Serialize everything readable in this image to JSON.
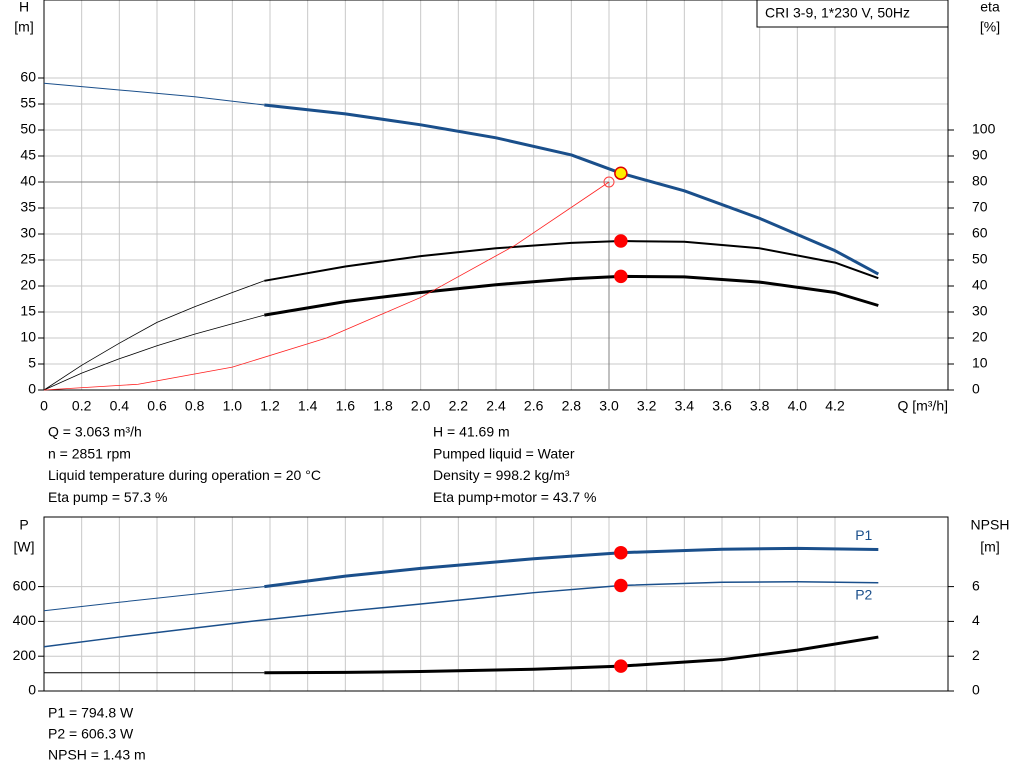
{
  "chart_data": [
    {
      "type": "line",
      "title": "CRI 3-9, 1*230 V, 50Hz",
      "ylabel": "H",
      "yunit": "[m]",
      "y2label": "eta",
      "y2unit": "[%]",
      "xlabel": "Q [m³/h]",
      "xlim": [
        0,
        4.8
      ],
      "ylim": [
        0,
        75
      ],
      "y2lim": [
        0,
        150
      ],
      "xticks": [
        0,
        0.2,
        0.4,
        0.6,
        0.8,
        {
          "value": 1,
          "label": "1.0"
        },
        1.2,
        1.4,
        1.6,
        1.8,
        {
          "value": 2,
          "label": "2.0"
        },
        2.2,
        2.4,
        2.6,
        2.8,
        {
          "value": 3,
          "label": "3.0"
        },
        3.2,
        3.4,
        3.6,
        3.8,
        {
          "value": 4,
          "label": "4.0"
        },
        4.2
      ],
      "xtick_labels": true,
      "yticks": [
        0,
        5,
        10,
        15,
        20,
        25,
        30,
        35,
        40,
        45,
        50,
        55,
        60
      ],
      "y2ticks": [
        0,
        10,
        20,
        30,
        40,
        50,
        60,
        70,
        80,
        90,
        100
      ],
      "grid": true,
      "reference": {
        "x": 3.0,
        "y": 40,
        "color": "#808080"
      },
      "series": [
        {
          "color": "#1a4f8b",
          "width": 1,
          "x": [
            0,
            0.4,
            0.8,
            1.17
          ],
          "values": [
            59,
            57.7,
            56.4,
            54.8
          ]
        },
        {
          "color": "#1a4f8b",
          "width": 3,
          "x": [
            1.17,
            1.6,
            2.0,
            2.4,
            2.8,
            3.063,
            3.4,
            3.8,
            4.2,
            4.43
          ],
          "values": [
            54.8,
            53.1,
            51,
            48.5,
            45.2,
            41.69,
            38.3,
            33,
            26.8,
            22.3
          ]
        },
        {
          "color": "#000000",
          "width": 0.8,
          "axis": "y2",
          "x": [
            0,
            0.2,
            0.4,
            0.6,
            0.8,
            1.0,
            1.17
          ],
          "values": [
            0,
            9.5,
            18,
            26,
            32,
            37.5,
            42
          ]
        },
        {
          "color": "#000000",
          "width": 2,
          "axis": "y2",
          "x": [
            1.17,
            1.6,
            2.0,
            2.4,
            2.8,
            3.063,
            3.4,
            3.8,
            4.2,
            4.43
          ],
          "values": [
            42,
            47.5,
            51.5,
            54.5,
            56.6,
            57.3,
            57,
            54.5,
            49,
            43
          ]
        },
        {
          "color": "#000000",
          "width": 0.8,
          "axis": "y2",
          "x": [
            0,
            0.2,
            0.4,
            0.6,
            0.8,
            1.0,
            1.17
          ],
          "values": [
            0,
            6.5,
            12,
            17,
            21.5,
            25.5,
            28.8
          ]
        },
        {
          "color": "#000000",
          "width": 3,
          "axis": "y2",
          "x": [
            1.17,
            1.6,
            2.0,
            2.4,
            2.8,
            3.063,
            3.4,
            3.8,
            4.2,
            4.43
          ],
          "values": [
            28.8,
            34,
            37.5,
            40.5,
            42.8,
            43.7,
            43.5,
            41.5,
            37.5,
            32.5
          ]
        },
        {
          "color": "#ff2020",
          "width": 0.8,
          "x": [
            0,
            0.5,
            1.0,
            1.5,
            2.0,
            2.5,
            3.0
          ],
          "values": [
            0,
            1.1,
            4.4,
            10,
            17.8,
            27.8,
            40
          ]
        }
      ],
      "markers": [
        {
          "x": 3.0,
          "y": 40,
          "fill": "none",
          "stroke": "#ff4040"
        },
        {
          "x": 3.063,
          "y": 41.69,
          "fill": "#ffee00",
          "stroke": "#dd0000"
        },
        {
          "x": 3.063,
          "y": 57.3,
          "axis": "y2",
          "fill": "#ff0000",
          "stroke": "#ff0000"
        },
        {
          "x": 3.063,
          "y": 43.7,
          "axis": "y2",
          "fill": "#ff0000",
          "stroke": "#ff0000"
        }
      ]
    },
    {
      "type": "line",
      "ylabel": "P",
      "yunit": "[W]",
      "y2label": "NPSH",
      "y2unit": "[m]",
      "xlim": [
        0,
        4.8
      ],
      "ylim": [
        0,
        1000
      ],
      "y2lim": [
        0,
        10
      ],
      "xticks": [
        0,
        0.2,
        0.4,
        0.6,
        0.8,
        1,
        1.2,
        1.4,
        1.6,
        1.8,
        2,
        2.2,
        2.4,
        2.6,
        2.8,
        3,
        3.2,
        3.4,
        3.6,
        3.8,
        4,
        4.2
      ],
      "xtick_labels": false,
      "yticks": [
        0,
        200,
        400,
        600
      ],
      "y2ticks": [
        0,
        2,
        4,
        6
      ],
      "grid": true,
      "series": [
        {
          "color": "#1a4f8b",
          "width": 1,
          "x": [
            0,
            0.4,
            0.8,
            1.17
          ],
          "values": [
            461,
            510,
            557,
            600
          ]
        },
        {
          "name": "P1",
          "color": "#1a4f8b",
          "width": 3,
          "x": [
            1.17,
            1.6,
            2.0,
            2.6,
            3.063,
            3.6,
            4.0,
            4.43
          ],
          "values": [
            600,
            660,
            705,
            760,
            794.8,
            815,
            820,
            813
          ]
        },
        {
          "name": "P2",
          "color": "#1a4f8b",
          "width": 1.5,
          "x": [
            0,
            0.4,
            0.8,
            1.17,
            1.6,
            2.0,
            2.6,
            3.063,
            3.6,
            4.0,
            4.43
          ],
          "values": [
            254,
            310,
            362,
            409,
            458,
            500,
            565,
            606.3,
            625,
            628,
            622
          ]
        },
        {
          "color": "#000000",
          "width": 1,
          "axis": "y2",
          "x": [
            0,
            1.17
          ],
          "values": [
            1.05,
            1.05
          ]
        },
        {
          "color": "#000000",
          "width": 3,
          "axis": "y2",
          "x": [
            1.17,
            1.6,
            2.0,
            2.6,
            3.063,
            3.6,
            4.0,
            4.43
          ],
          "values": [
            1.05,
            1.07,
            1.12,
            1.25,
            1.43,
            1.8,
            2.35,
            3.1
          ]
        }
      ],
      "markers": [
        {
          "x": 3.063,
          "y": 794.8,
          "fill": "#ff0000",
          "stroke": "#ff0000"
        },
        {
          "x": 3.063,
          "y": 606.3,
          "fill": "#ff0000",
          "stroke": "#ff0000"
        },
        {
          "x": 3.063,
          "y": 1.43,
          "axis": "y2",
          "fill": "#ff0000",
          "stroke": "#ff0000"
        }
      ]
    }
  ],
  "info_top": {
    "left": [
      "Q = 3.063 m³/h",
      "n = 2851 rpm",
      "Liquid temperature during operation = 20 °C",
      "Eta pump = 57.3 %"
    ],
    "right": [
      "H = 41.69 m",
      "Pumped liquid = Water",
      "Density = 998.2 kg/m³",
      "Eta pump+motor = 43.7 %"
    ]
  },
  "info_bottom": [
    "P1 = 794.8 W",
    "P2 = 606.3 W",
    "NPSH = 1.43 m"
  ]
}
